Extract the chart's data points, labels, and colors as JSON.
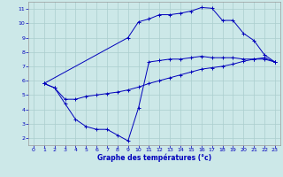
{
  "xlabel": "Graphe des températures (°c)",
  "background_color": "#cce8e8",
  "grid_color": "#aacece",
  "line_color": "#0000bb",
  "tick_color": "#0000bb",
  "xlim": [
    -0.5,
    23.5
  ],
  "ylim": [
    1.5,
    11.5
  ],
  "xticks": [
    0,
    1,
    2,
    3,
    4,
    5,
    6,
    7,
    8,
    9,
    10,
    11,
    12,
    13,
    14,
    15,
    16,
    17,
    18,
    19,
    20,
    21,
    22,
    23
  ],
  "yticks": [
    2,
    3,
    4,
    5,
    6,
    7,
    8,
    9,
    10,
    11
  ],
  "line1_x": [
    1,
    2,
    3,
    4,
    5,
    6,
    7,
    8,
    9,
    10,
    11,
    12,
    13,
    14,
    15,
    16,
    17,
    18,
    19,
    20,
    21,
    22,
    23
  ],
  "line1_y": [
    5.8,
    5.5,
    4.4,
    3.3,
    2.8,
    2.6,
    2.6,
    2.2,
    1.8,
    4.1,
    7.3,
    7.4,
    7.5,
    7.5,
    7.6,
    7.7,
    7.6,
    7.6,
    7.6,
    7.5,
    7.5,
    7.5,
    7.3
  ],
  "line2_x": [
    1,
    2,
    3,
    4,
    5,
    6,
    7,
    8,
    9,
    10,
    11,
    12,
    13,
    14,
    15,
    16,
    17,
    18,
    19,
    20,
    21,
    22,
    23
  ],
  "line2_y": [
    5.8,
    5.5,
    4.7,
    4.7,
    4.9,
    5.0,
    5.1,
    5.2,
    5.35,
    5.55,
    5.8,
    6.0,
    6.2,
    6.4,
    6.6,
    6.8,
    6.9,
    7.0,
    7.15,
    7.35,
    7.5,
    7.6,
    7.3
  ],
  "line3_x": [
    1,
    9,
    10,
    11,
    12,
    13,
    14,
    15,
    16,
    17,
    18,
    19,
    20,
    21,
    22,
    23
  ],
  "line3_y": [
    5.8,
    9.0,
    10.1,
    10.3,
    10.6,
    10.6,
    10.7,
    10.85,
    11.1,
    11.05,
    10.2,
    10.2,
    9.3,
    8.8,
    7.8,
    7.3
  ]
}
